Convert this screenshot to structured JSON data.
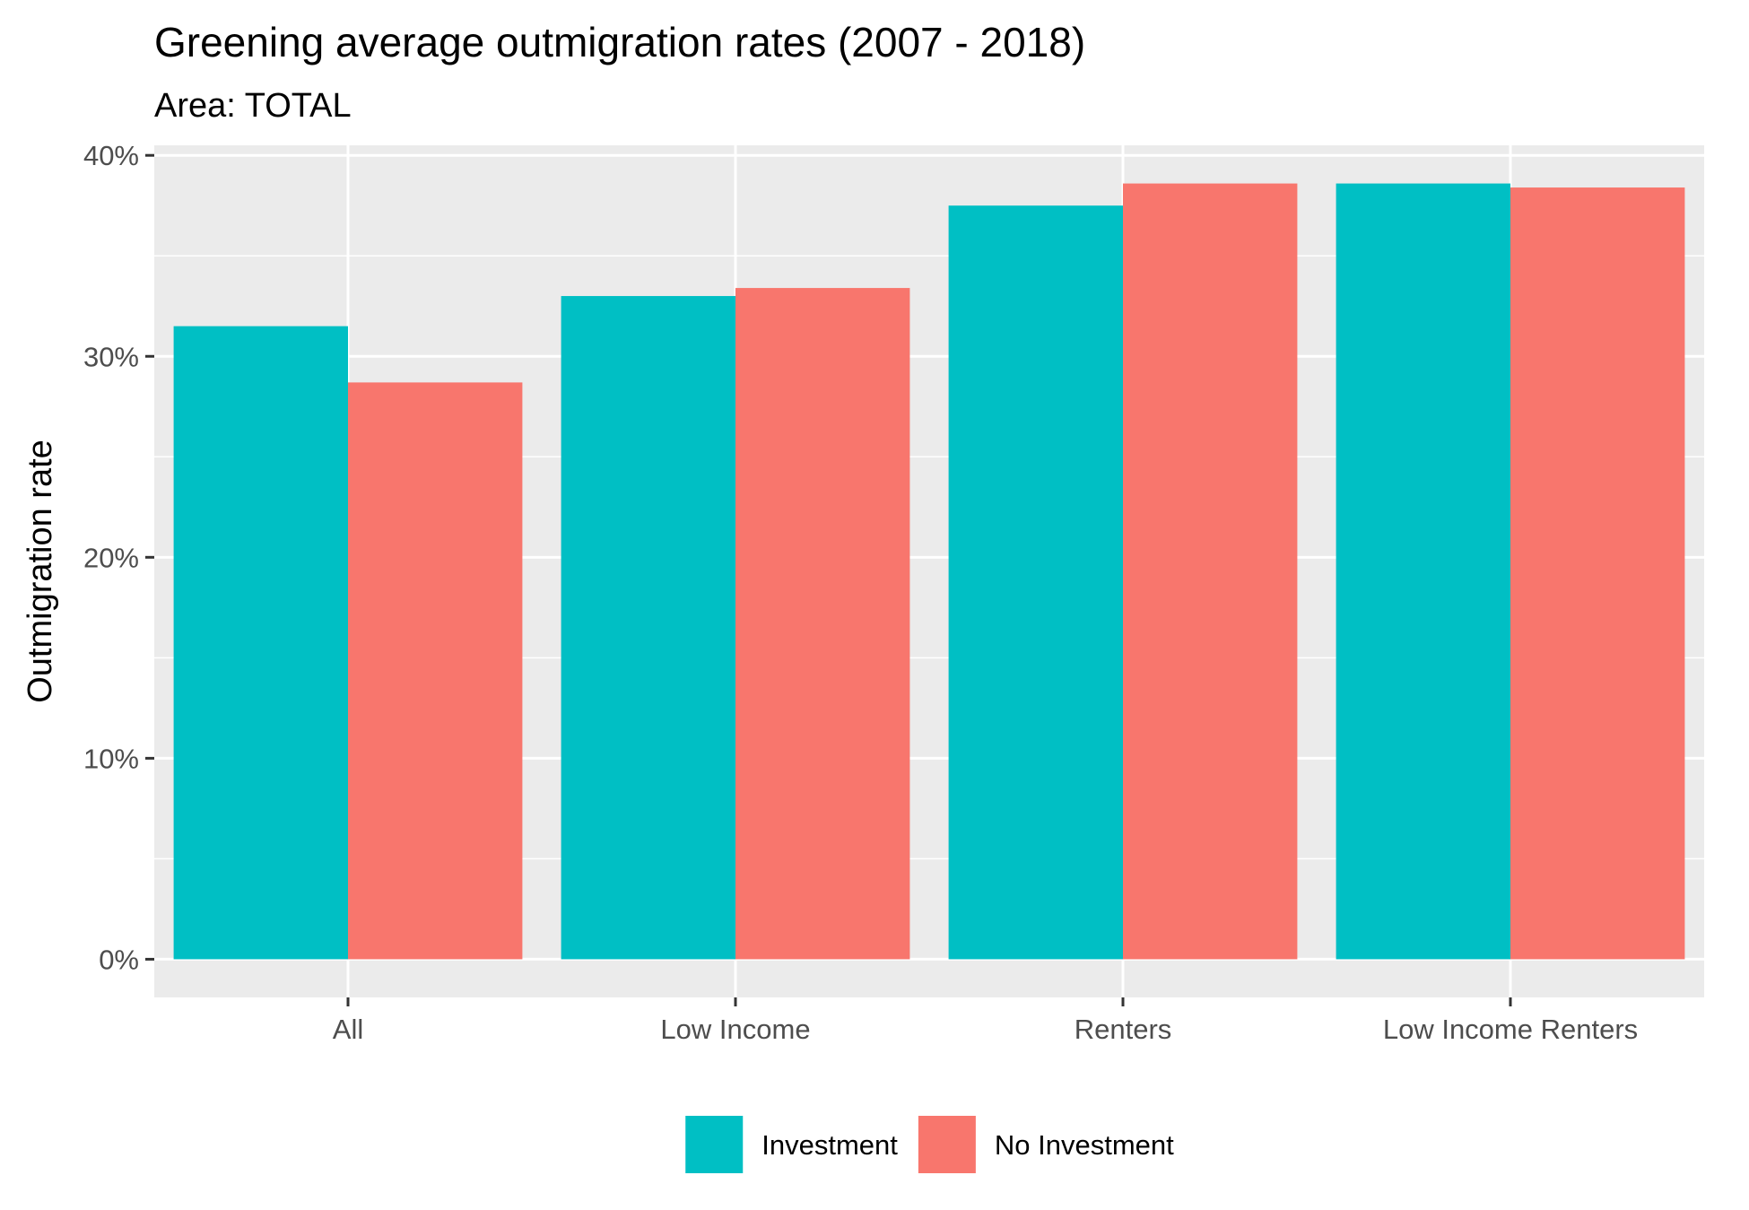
{
  "chart_data": {
    "type": "bar",
    "title": "Greening average outmigration rates (2007 - 2018)",
    "subtitle": "Area: TOTAL",
    "xlabel": "",
    "ylabel": "Outmigration rate",
    "categories": [
      "All",
      "Low Income",
      "Renters",
      "Low Income Renters"
    ],
    "series": [
      {
        "name": "Investment",
        "color": "#00BFC4",
        "values": [
          31.5,
          33.0,
          37.5,
          38.6
        ]
      },
      {
        "name": "No Investment",
        "color": "#F8766D",
        "values": [
          28.7,
          33.4,
          38.6,
          38.4
        ]
      }
    ],
    "ylim": [
      -1.9,
      40.5
    ],
    "y_ticks": [
      0,
      10,
      20,
      30,
      40
    ],
    "y_tick_labels": [
      "0%",
      "10%",
      "20%",
      "30%",
      "40%"
    ],
    "grid": true,
    "legend_position": "bottom",
    "panel_background": "#EBEBEB",
    "grid_color": "#FFFFFF"
  }
}
